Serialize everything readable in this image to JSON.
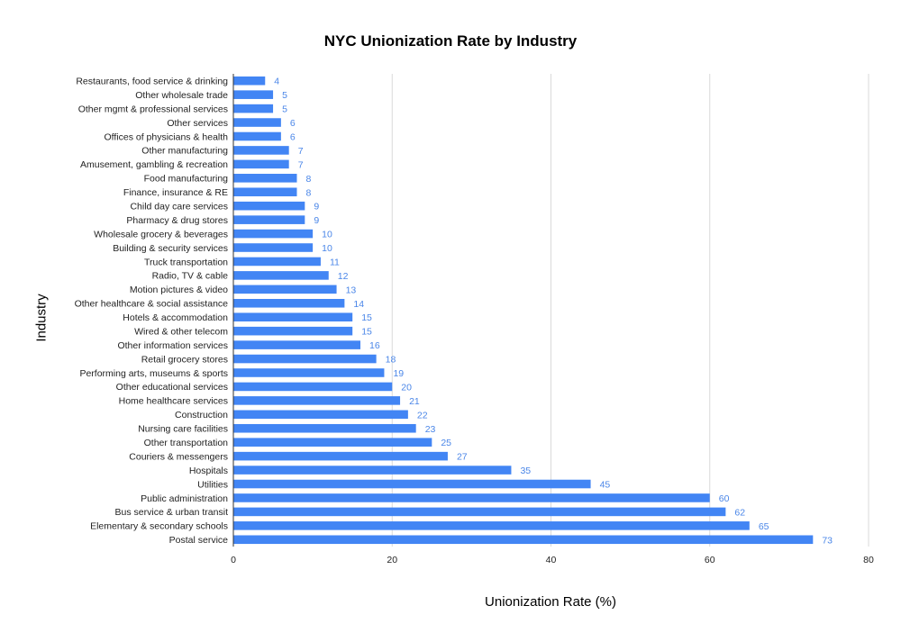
{
  "chart_data": {
    "type": "bar",
    "orientation": "horizontal",
    "title": "NYC Unionization Rate by Industry",
    "xlabel": "Unionization Rate (%)",
    "ylabel": "Industry",
    "xlim": [
      0,
      80
    ],
    "x_ticks": [
      "0",
      "20",
      "40",
      "60",
      "80"
    ],
    "grid": "vertical",
    "legend": "none",
    "bar_color": "#4285f4",
    "label_color": "#4a86e8",
    "categories": [
      "Restaurants, food service & drinking",
      "Other wholesale trade",
      "Other mgmt & professional services",
      "Other services",
      "Offices of physicians & health",
      "Other manufacturing",
      "Amusement, gambling & recreation",
      "Food manufacturing",
      "Finance, insurance & RE",
      "Child day care services",
      "Pharmacy & drug stores",
      "Wholesale grocery & beverages",
      "Building & security services",
      "Truck transportation",
      "Radio, TV & cable",
      "Motion pictures & video",
      "Other healthcare & social assistance",
      "Hotels & accommodation",
      "Wired & other telecom",
      "Other information services",
      "Retail grocery stores",
      "Performing arts, museums & sports",
      "Other educational services",
      "Home healthcare services",
      "Construction",
      "Nursing care facilities",
      "Other transportation",
      "Couriers & messengers",
      "Hospitals",
      "Utilities",
      "Public administration",
      "Bus service & urban transit",
      "Elementary & secondary schools",
      "Postal service"
    ],
    "values": [
      4,
      5,
      5,
      6,
      6,
      7,
      7,
      8,
      8,
      9,
      9,
      10,
      10,
      11,
      12,
      13,
      14,
      15,
      15,
      16,
      18,
      19,
      20,
      21,
      22,
      23,
      25,
      27,
      35,
      45,
      60,
      62,
      65,
      73
    ]
  }
}
